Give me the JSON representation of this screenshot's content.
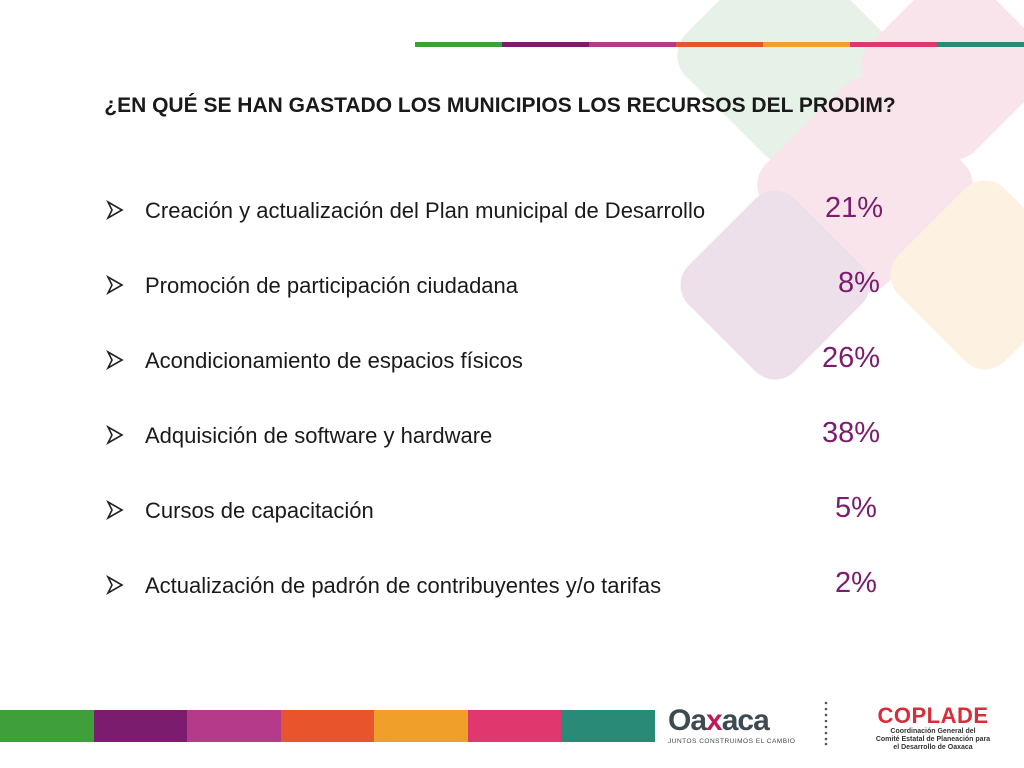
{
  "slide": {
    "title": "¿EN QUÉ SE HAN GASTADO LOS MUNICIPIOS LOS RECURSOS DEL PRODIM?",
    "items": [
      {
        "label": "Creación y actualización del Plan municipal de Desarrollo",
        "percent": "21%"
      },
      {
        "label": "Promoción de participación ciudadana",
        "percent": "8%"
      },
      {
        "label": "Acondicionamiento de espacios físicos",
        "percent": "26%"
      },
      {
        "label": "Adquisición de software y hardware",
        "percent": "38%"
      },
      {
        "label": "Cursos de capacitación",
        "percent": "5%"
      },
      {
        "label": "Actualización de padrón de contribuyentes y/o tarifas",
        "percent": "2%"
      }
    ]
  },
  "footer": {
    "oaxaca_logo": {
      "pre": "Oa",
      "x": "x",
      "post": "aca",
      "tagline": "JUNTOS CONSTRUIMOS EL CAMBIO"
    },
    "coplade_logo": {
      "name": "COPLADE",
      "line1": "Coordinación General del",
      "line2": "Comité Estatal de Planeación para",
      "line3": "el Desarrollo de Oaxaca"
    }
  },
  "colors": {
    "accent_percent": "#7b1c6e",
    "stripe": [
      "#3f9f3a",
      "#7b1c6e",
      "#b53a8a",
      "#e8542c",
      "#f0a02a",
      "#e0386e",
      "#2a8a78"
    ],
    "coplade_red": "#d62e3a"
  },
  "icons": {
    "bullet": "arrowhead-bullet-icon",
    "divider": "dotted-divider"
  }
}
